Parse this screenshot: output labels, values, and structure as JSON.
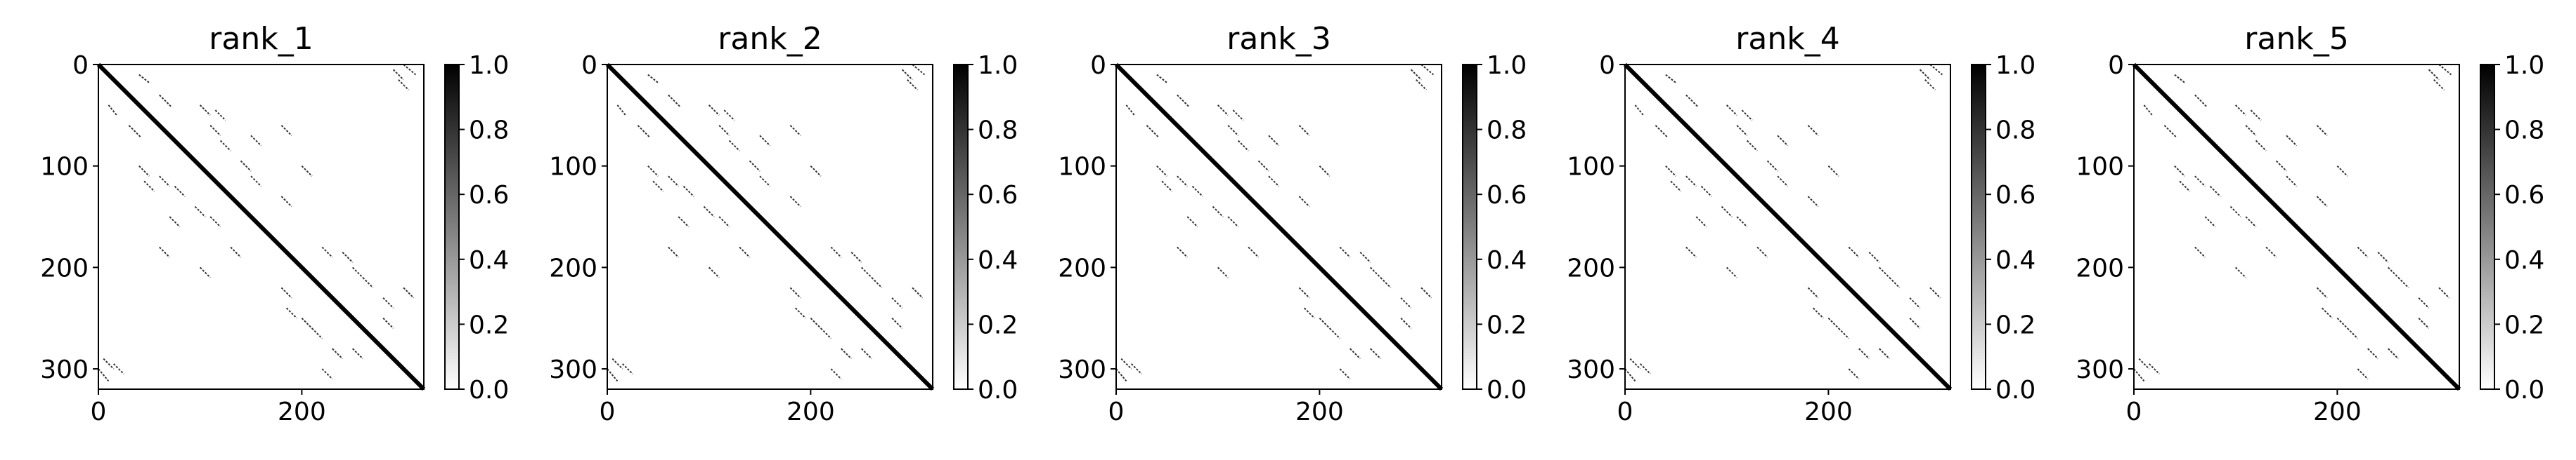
{
  "chart_data": [
    {
      "type": "heatmap",
      "title": "rank_1",
      "xlim": [
        0,
        320
      ],
      "ylim": [
        320,
        0
      ],
      "x_ticks": [
        0,
        200
      ],
      "y_ticks": [
        0,
        100,
        200,
        300
      ],
      "colorbar": {
        "range": [
          0.0,
          1.0
        ],
        "ticks": [
          "0.0",
          "0.2",
          "0.4",
          "0.6",
          "0.8",
          "1.0"
        ],
        "colormap": "white-to-black"
      }
    },
    {
      "type": "heatmap",
      "title": "rank_2",
      "xlim": [
        0,
        320
      ],
      "ylim": [
        320,
        0
      ],
      "x_ticks": [
        0,
        200
      ],
      "y_ticks": [
        0,
        100,
        200,
        300
      ],
      "colorbar": {
        "range": [
          0.0,
          1.0
        ],
        "ticks": [
          "0.0",
          "0.2",
          "0.4",
          "0.6",
          "0.8",
          "1.0"
        ],
        "colormap": "white-to-black"
      }
    },
    {
      "type": "heatmap",
      "title": "rank_3",
      "xlim": [
        0,
        320
      ],
      "ylim": [
        320,
        0
      ],
      "x_ticks": [
        0,
        200
      ],
      "y_ticks": [
        0,
        100,
        200,
        300
      ],
      "colorbar": {
        "range": [
          0.0,
          1.0
        ],
        "ticks": [
          "0.0",
          "0.2",
          "0.4",
          "0.6",
          "0.8",
          "1.0"
        ],
        "colormap": "white-to-black"
      }
    },
    {
      "type": "heatmap",
      "title": "rank_4",
      "xlim": [
        0,
        320
      ],
      "ylim": [
        320,
        0
      ],
      "x_ticks": [
        0,
        200
      ],
      "y_ticks": [
        0,
        100,
        200,
        300
      ],
      "colorbar": {
        "range": [
          0.0,
          1.0
        ],
        "ticks": [
          "0.0",
          "0.2",
          "0.4",
          "0.6",
          "0.8",
          "1.0"
        ],
        "colormap": "white-to-black"
      }
    },
    {
      "type": "heatmap",
      "title": "rank_5",
      "xlim": [
        0,
        320
      ],
      "ylim": [
        320,
        0
      ],
      "x_ticks": [
        0,
        200
      ],
      "y_ticks": [
        0,
        100,
        200,
        300
      ],
      "colorbar": {
        "range": [
          0.0,
          1.0
        ],
        "ticks": [
          "0.0",
          "0.2",
          "0.4",
          "0.6",
          "0.8",
          "1.0"
        ],
        "colormap": "white-to-black"
      }
    }
  ],
  "contact_pattern": {
    "diagonal": [
      [
        0,
        320
      ]
    ],
    "segments": [
      [
        [
          10,
          18
        ],
        [
          40,
          50
        ]
      ],
      [
        [
          30,
          42
        ],
        [
          60,
          72
        ]
      ],
      [
        [
          40,
          50
        ],
        [
          100,
          110
        ]
      ],
      [
        [
          45,
          55
        ],
        [
          115,
          125
        ]
      ],
      [
        [
          60,
          70
        ],
        [
          110,
          120
        ]
      ],
      [
        [
          75,
          85
        ],
        [
          120,
          130
        ]
      ],
      [
        [
          70,
          80
        ],
        [
          150,
          160
        ]
      ],
      [
        [
          95,
          105
        ],
        [
          140,
          150
        ]
      ],
      [
        [
          110,
          120
        ],
        [
          150,
          160
        ]
      ],
      [
        [
          60,
          70
        ],
        [
          180,
          190
        ]
      ],
      [
        [
          100,
          110
        ],
        [
          200,
          210
        ]
      ],
      [
        [
          130,
          140
        ],
        [
          180,
          190
        ]
      ],
      [
        [
          180,
          190
        ],
        [
          220,
          230
        ]
      ],
      [
        [
          185,
          195
        ],
        [
          240,
          250
        ]
      ],
      [
        [
          200,
          210
        ],
        [
          250,
          260
        ]
      ],
      [
        [
          210,
          220
        ],
        [
          260,
          270
        ]
      ],
      [
        [
          230,
          240
        ],
        [
          280,
          290
        ]
      ],
      [
        [
          250,
          260
        ],
        [
          280,
          290
        ]
      ],
      [
        [
          220,
          230
        ],
        [
          300,
          310
        ]
      ],
      [
        [
          5,
          15
        ],
        [
          290,
          300
        ]
      ],
      [
        [
          0,
          10
        ],
        [
          300,
          312
        ]
      ],
      [
        [
          15,
          25
        ],
        [
          295,
          305
        ]
      ]
    ]
  },
  "colors": {
    "axis": "#000000",
    "background": "#ffffff",
    "cmap_low": "#ffffff",
    "cmap_high": "#000000"
  }
}
